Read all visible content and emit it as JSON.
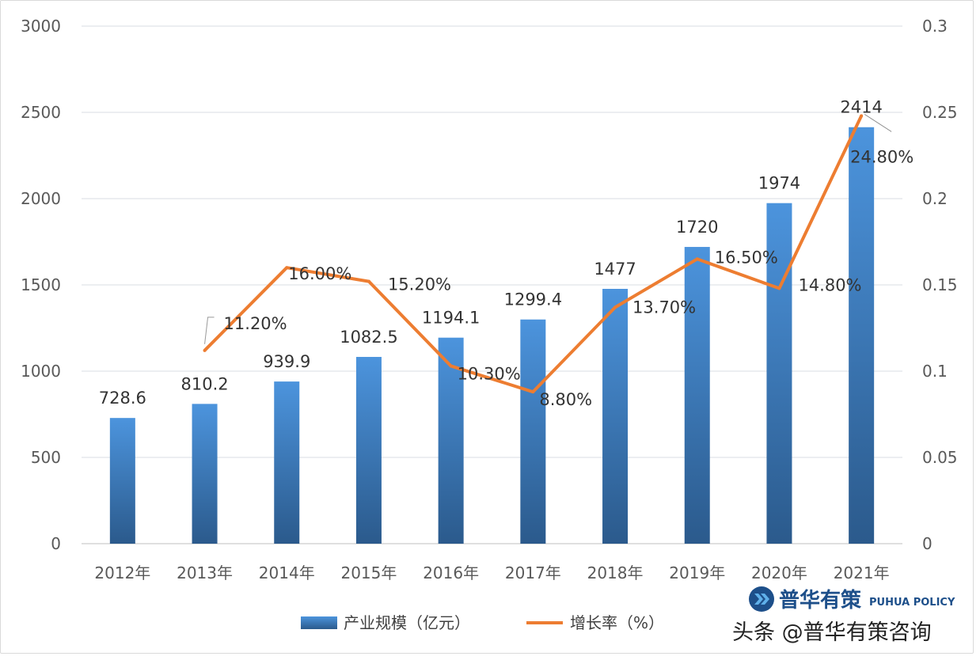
{
  "chart_data": {
    "type": "bar+line",
    "categories": [
      "2012年",
      "2013年",
      "2014年",
      "2015年",
      "2016年",
      "2017年",
      "2018年",
      "2019年",
      "2020年",
      "2021年"
    ],
    "series": [
      {
        "name": "产业规模（亿元）",
        "type": "bar",
        "axis": "left",
        "values": [
          728.6,
          810.2,
          939.9,
          1082.5,
          1194.1,
          1299.4,
          1477,
          1720,
          1974,
          2414
        ],
        "labels": [
          "728.6",
          "810.2",
          "939.9",
          "1082.5",
          "1194.1",
          "1299.4",
          "1477",
          "1720",
          "1974",
          "2414"
        ],
        "color": "#3f82c9"
      },
      {
        "name": "增长率（%）",
        "type": "line",
        "axis": "right",
        "values": [
          null,
          0.112,
          0.16,
          0.152,
          0.103,
          0.088,
          0.137,
          0.165,
          0.148,
          0.248
        ],
        "labels": [
          null,
          "11.20%",
          "16.00%",
          "15.20%",
          "10.30%",
          "8.80%",
          "13.70%",
          "16.50%",
          "14.80%",
          "24.80%"
        ],
        "color": "#ed7d31"
      }
    ],
    "y_left": {
      "range": [
        0,
        3000
      ],
      "ticks": [
        "0",
        "500",
        "1000",
        "1500",
        "2000",
        "2500",
        "3000"
      ]
    },
    "y_right": {
      "range": [
        0,
        0.3
      ],
      "ticks": [
        "0",
        "0.05",
        "0.1",
        "0.15",
        "0.2",
        "0.25",
        "0.3"
      ]
    },
    "grid": true,
    "legend": "bottom"
  },
  "watermark": {
    "logo_text": "普华有策",
    "logo_subtext": "PUHUA POLICY",
    "caption": "头条 @普华有策咨询"
  }
}
